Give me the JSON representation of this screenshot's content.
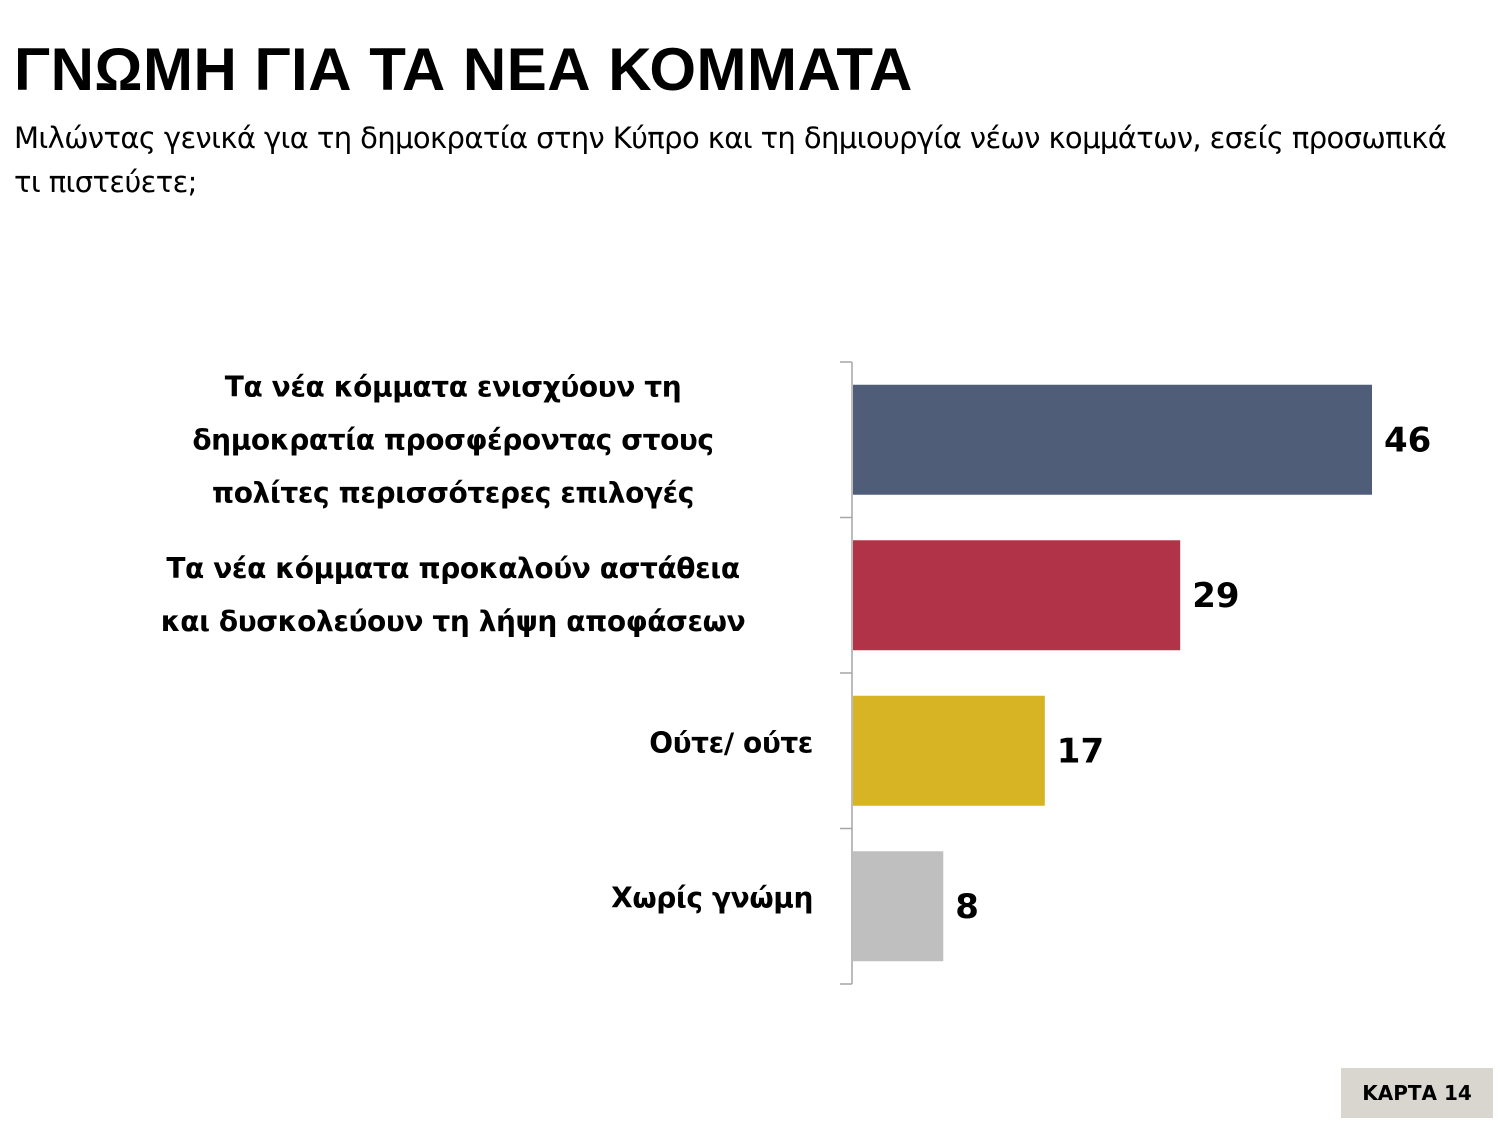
{
  "header": {
    "title": "ΓΝΩΜΗ ΓΙΑ ΤΑ ΝΕΑ ΚΟΜΜΑΤΑ",
    "subtitle": "Μιλώντας γενικά για τη δημοκρατία στην Κύπρο και τη δημιουργία νέων κομμάτων, εσείς προσωπικά τι πιστεύετε;"
  },
  "chart_data": {
    "type": "bar",
    "orientation": "horizontal",
    "categories": [
      "Τα νέα κόμματα ενισχύουν τη\nδημοκρατία προσφέροντας στους\nπολίτες περισσότερες επιλογές",
      "Τα νέα κόμματα προκαλούν αστάθεια\nκαι δυσκολεύουν τη λήψη αποφάσεων",
      "Ούτε/ ούτε",
      "Χωρίς γνώμη"
    ],
    "values": [
      46,
      29,
      17,
      8
    ],
    "colors": [
      "#505d79",
      "#b13347",
      "#d6b423",
      "#bfbfbf"
    ],
    "xlim": [
      0,
      50
    ],
    "grid": false,
    "data_labels": true,
    "legend": "none"
  },
  "footer": {
    "badge": "ΚΑΡΤΑ 14"
  }
}
